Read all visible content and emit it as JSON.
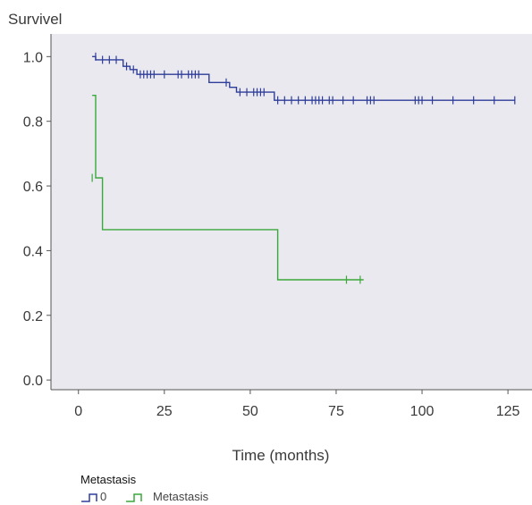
{
  "chart_data": {
    "type": "line",
    "subtype": "kaplan-meier",
    "title": "",
    "ylabel": "Survivel",
    "xlabel": "Time (months)",
    "xlim": [
      -8,
      132
    ],
    "ylim": [
      -0.03,
      1.07
    ],
    "xticks": [
      "0",
      "25",
      "50",
      "75",
      "100",
      "125"
    ],
    "yticks": [
      "0.0",
      "0.2",
      "0.4",
      "0.6",
      "0.8",
      "1.0"
    ],
    "plot_background": "#e9e9ef",
    "grid": false,
    "legend": {
      "title": "Metastasis",
      "position": "bottom-left",
      "entries": [
        "0",
        "Metastasis"
      ]
    },
    "series": [
      {
        "name": "0",
        "color": "#2e3d9a",
        "steps": [
          [
            4,
            1.0
          ],
          [
            5,
            0.99
          ],
          [
            13,
            0.97
          ],
          [
            15,
            0.96
          ],
          [
            17,
            0.945
          ],
          [
            38,
            0.92
          ],
          [
            44,
            0.905
          ],
          [
            46,
            0.89
          ],
          [
            57,
            0.865
          ],
          [
            127,
            0.865
          ]
        ],
        "censored": [
          [
            5,
            1.0
          ],
          [
            7,
            0.99
          ],
          [
            9,
            0.99
          ],
          [
            11,
            0.99
          ],
          [
            14,
            0.97
          ],
          [
            16,
            0.96
          ],
          [
            18,
            0.945
          ],
          [
            19,
            0.945
          ],
          [
            20,
            0.945
          ],
          [
            21,
            0.945
          ],
          [
            22,
            0.945
          ],
          [
            25,
            0.945
          ],
          [
            29,
            0.945
          ],
          [
            30,
            0.945
          ],
          [
            32,
            0.945
          ],
          [
            33,
            0.945
          ],
          [
            34,
            0.945
          ],
          [
            35,
            0.945
          ],
          [
            43,
            0.92
          ],
          [
            47,
            0.89
          ],
          [
            49,
            0.89
          ],
          [
            51,
            0.89
          ],
          [
            52,
            0.89
          ],
          [
            53,
            0.89
          ],
          [
            54,
            0.89
          ],
          [
            58,
            0.865
          ],
          [
            60,
            0.865
          ],
          [
            62,
            0.865
          ],
          [
            64,
            0.865
          ],
          [
            66,
            0.865
          ],
          [
            68,
            0.865
          ],
          [
            69,
            0.865
          ],
          [
            70,
            0.865
          ],
          [
            71,
            0.865
          ],
          [
            73,
            0.865
          ],
          [
            74,
            0.865
          ],
          [
            77,
            0.865
          ],
          [
            80,
            0.865
          ],
          [
            84,
            0.865
          ],
          [
            85,
            0.865
          ],
          [
            86,
            0.865
          ],
          [
            98,
            0.865
          ],
          [
            99,
            0.865
          ],
          [
            100,
            0.865
          ],
          [
            103,
            0.865
          ],
          [
            109,
            0.865
          ],
          [
            115,
            0.865
          ],
          [
            121,
            0.865
          ],
          [
            127,
            0.865
          ]
        ]
      },
      {
        "name": "Metastasis",
        "color": "#3aa83a",
        "steps": [
          [
            4,
            0.88
          ],
          [
            5,
            0.625
          ],
          [
            7,
            0.465
          ],
          [
            58,
            0.31
          ],
          [
            83,
            0.31
          ]
        ],
        "censored": [
          [
            4,
            0.625
          ],
          [
            78,
            0.31
          ],
          [
            82,
            0.31
          ]
        ]
      }
    ]
  }
}
